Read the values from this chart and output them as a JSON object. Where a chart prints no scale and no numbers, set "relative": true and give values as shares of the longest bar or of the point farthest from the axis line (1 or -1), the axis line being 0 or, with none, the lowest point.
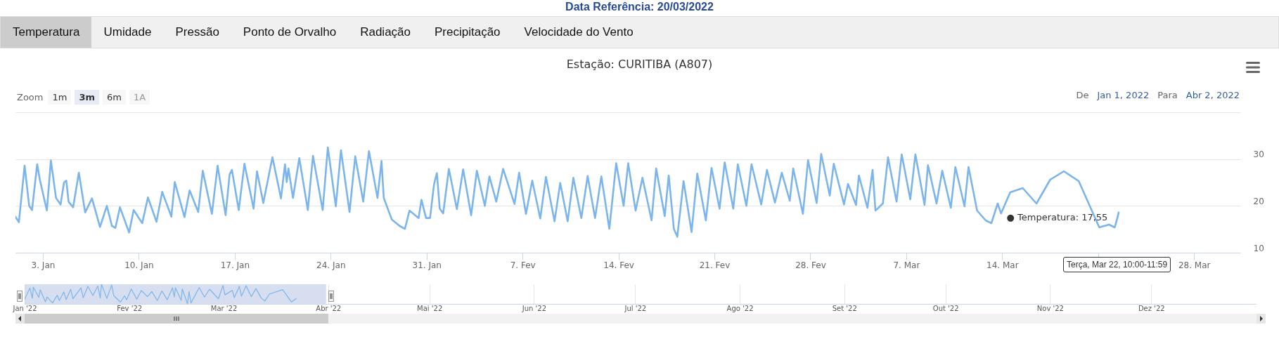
{
  "chart_data": [
    {
      "type": "other",
      "title": "Data Referência: 20/03/2022",
      "annotations": [
        "Temperatura",
        "Umidade",
        "Pressão",
        "Ponto de Orvalho",
        "Radiação",
        "Precipitação",
        "Velocidade do Vento"
      ]
    },
    {
      "type": "line",
      "title": "Estação: CURITIBA (A807)",
      "color": "#7cb5ec",
      "x": [
        "2022-01-01T00:00",
        "2022-01-01T06:00",
        "2022-01-01T16:00",
        "2022-01-02T00:00",
        "2022-01-02T05:00",
        "2022-01-02T14:00",
        "2022-01-02T19:00",
        "2022-01-03T07:00",
        "2022-01-03T14:00",
        "2022-01-03T23:00",
        "2022-01-04T07:00",
        "2022-01-04T13:00",
        "2022-01-04T17:00",
        "2022-01-04T21:00",
        "2022-01-05T05:00",
        "2022-01-05T15:00",
        "2022-01-06T02:00",
        "2022-01-06T14:00",
        "2022-01-07T04:00",
        "2022-01-07T16:00",
        "2022-01-08T01:00",
        "2022-01-08T07:00",
        "2022-01-08T15:00",
        "2022-01-09T07:00",
        "2022-01-09T15:00",
        "2022-01-10T06:00",
        "2022-01-10T16:00",
        "2022-01-11T07:00",
        "2022-01-11T17:00",
        "2022-01-12T09:00",
        "2022-01-12T15:00",
        "2022-01-13T08:00",
        "2022-01-13T17:00",
        "2022-01-14T08:00",
        "2022-01-14T16:00",
        "2022-01-15T08:00",
        "2022-01-15T18:00",
        "2022-01-16T08:00",
        "2022-01-16T15:00",
        "2022-01-16T19:00",
        "2022-01-17T07:00",
        "2022-01-17T17:00",
        "2022-01-18T09:00",
        "2022-01-18T15:00",
        "2022-01-19T02:00",
        "2022-01-19T18:00",
        "2022-01-20T09:00",
        "2022-01-20T16:00",
        "2022-01-20T19:00",
        "2022-01-20T22:00",
        "2022-01-21T06:00",
        "2022-01-21T17:00",
        "2022-01-22T08:00",
        "2022-01-22T17:00",
        "2022-01-23T10:00",
        "2022-01-23T19:00",
        "2022-01-24T09:00",
        "2022-01-24T18:00",
        "2022-01-25T09:00",
        "2022-01-25T19:00",
        "2022-01-26T09:00",
        "2022-01-26T19:00",
        "2022-01-27T10:00",
        "2022-01-27T17:00",
        "2022-01-27T21:00",
        "2022-01-28T11:00",
        "2022-01-29T01:00",
        "2022-01-29T10:00",
        "2022-01-29T18:00",
        "2022-01-30T10:00",
        "2022-01-30T15:00",
        "2022-01-30T23:00",
        "2022-01-31T06:00",
        "2022-01-31T13:00",
        "2022-01-31T18:00",
        "2022-01-31T23:00",
        "2022-02-01T05:00",
        "2022-02-01T15:00",
        "2022-02-02T05:00",
        "2022-02-02T16:00",
        "2022-02-03T06:00",
        "2022-02-03T16:00",
        "2022-02-04T06:00",
        "2022-02-04T14:00",
        "2022-02-05T02:00",
        "2022-02-05T14:00",
        "2022-02-06T10:00",
        "2022-02-06T18:00",
        "2022-02-07T06:00",
        "2022-02-07T17:00",
        "2022-02-08T07:00",
        "2022-02-08T17:00",
        "2022-02-09T08:00",
        "2022-02-09T18:00",
        "2022-02-10T07:00",
        "2022-02-10T17:00",
        "2022-02-11T07:00",
        "2022-02-11T18:00",
        "2022-02-12T07:00",
        "2022-02-12T18:00",
        "2022-02-13T08:00",
        "2022-02-13T20:00",
        "2022-02-14T09:00",
        "2022-02-14T17:00",
        "2022-02-15T06:00",
        "2022-02-15T18:00",
        "2022-02-16T10:00",
        "2022-02-16T18:00",
        "2022-02-17T09:00",
        "2022-02-17T16:00",
        "2022-02-18T01:00",
        "2022-02-18T07:00",
        "2022-02-18T18:00",
        "2022-02-19T08:00",
        "2022-02-19T18:00",
        "2022-02-20T09:00",
        "2022-02-20T19:00",
        "2022-02-21T09:00",
        "2022-02-21T18:00",
        "2022-02-22T09:00",
        "2022-02-22T17:00",
        "2022-02-23T08:00",
        "2022-02-23T17:00",
        "2022-02-24T10:00",
        "2022-02-24T20:00",
        "2022-02-25T10:00",
        "2022-02-25T22:00",
        "2022-02-26T12:00",
        "2022-02-26T18:00",
        "2022-02-27T11:00",
        "2022-02-27T20:00",
        "2022-02-28T11:00",
        "2022-02-28T19:00",
        "2022-03-01T10:00",
        "2022-03-01T17:00",
        "2022-03-02T11:00",
        "2022-03-02T18:00",
        "2022-03-03T08:00",
        "2022-03-03T13:00",
        "2022-03-04T04:00",
        "2022-03-04T13:00",
        "2022-03-04T18:00",
        "2022-03-05T07:00",
        "2022-03-05T16:00",
        "2022-03-06T07:00",
        "2022-03-06T16:00",
        "2022-03-07T07:00",
        "2022-03-07T16:00",
        "2022-03-08T08:00",
        "2022-03-08T14:00",
        "2022-03-09T05:00",
        "2022-03-09T15:00",
        "2022-03-10T06:00",
        "2022-03-10T14:00",
        "2022-03-11T06:00",
        "2022-03-11T13:00",
        "2022-03-12T04:00",
        "2022-03-12T19:00",
        "2022-03-13T05:00",
        "2022-03-13T16:00",
        "2022-03-13T22:00",
        "2022-03-14T14:00",
        "2022-03-15T12:00",
        "2022-03-16T12:00",
        "2022-03-17T12:00",
        "2022-03-18T12:00",
        "2022-03-19T14:00",
        "2022-03-21T02:00",
        "2022-03-21T19:00",
        "2022-03-22T05:00",
        "2022-03-22T10:00",
        "2022-03-22T12:00"
      ],
      "values": [
        17.7,
        16.5,
        28.6,
        20.0,
        19.1,
        28.9,
        25.4,
        19.0,
        29.7,
        21.7,
        20.3,
        25.0,
        25.4,
        20.9,
        19.7,
        27.1,
        18.6,
        21.6,
        15.5,
        20.0,
        15.7,
        15.3,
        19.7,
        14.3,
        19.1,
        16.3,
        21.8,
        16.6,
        23.0,
        17.7,
        25.1,
        17.6,
        23.3,
        18.7,
        27.5,
        18.3,
        28.6,
        18.0,
        26.7,
        27.7,
        19.1,
        29.0,
        19.4,
        27.4,
        20.6,
        30.4,
        21.6,
        28.9,
        25.1,
        28.0,
        21.7,
        30.2,
        19.1,
        30.7,
        19.1,
        32.5,
        19.9,
        31.9,
        18.7,
        30.6,
        20.9,
        31.7,
        21.7,
        29.6,
        21.7,
        17.1,
        15.7,
        15.1,
        19.0,
        17.4,
        21.3,
        17.4,
        17.4,
        24.6,
        27.0,
        19.4,
        18.4,
        27.9,
        19.3,
        27.8,
        18.0,
        27.5,
        20.0,
        26.3,
        20.9,
        27.9,
        20.4,
        27.1,
        18.3,
        25.4,
        17.3,
        26.2,
        16.7,
        24.9,
        16.7,
        26.0,
        17.4,
        26.4,
        17.4,
        26.3,
        15.1,
        29.1,
        20.0,
        29.1,
        19.0,
        26.0,
        16.9,
        28.0,
        17.8,
        26.5,
        15.1,
        13.4,
        25.3,
        14.4,
        26.9,
        16.9,
        28.1,
        19.4,
        29.3,
        19.4,
        28.9,
        20.0,
        28.9,
        20.3,
        27.7,
        20.7,
        27.1,
        21.1,
        28.0,
        18.3,
        29.8,
        20.6,
        31.1,
        22.2,
        29.0,
        20.3,
        24.7,
        20.2,
        26.5,
        19.6,
        27.7,
        19.0,
        20.5,
        30.4,
        20.9,
        31.0,
        21.4,
        31.0,
        20.2,
        28.7,
        20.5,
        27.5,
        19.6,
        28.3,
        19.9,
        28.3,
        19.0,
        16.9,
        16.3,
        20.5,
        18.4,
        22.9,
        23.8,
        20.5,
        25.6,
        27.4,
        25.3,
        15.4,
        16.0,
        15.4,
        17.55,
        18.6
      ],
      "xlim": [
        "2022-01-01T00:00",
        "2022-03-31T09:00"
      ],
      "xticks": [
        {
          "value": "2022-01-03",
          "label": "3. Jan"
        },
        {
          "value": "2022-01-10",
          "label": "10. Jan"
        },
        {
          "value": "2022-01-17",
          "label": "17. Jan"
        },
        {
          "value": "2022-01-24",
          "label": "24. Jan"
        },
        {
          "value": "2022-01-31",
          "label": "31. Jan"
        },
        {
          "value": "2022-02-07",
          "label": "7. Fev"
        },
        {
          "value": "2022-02-14",
          "label": "14. Fev"
        },
        {
          "value": "2022-02-21",
          "label": "21. Fev"
        },
        {
          "value": "2022-02-28",
          "label": "28. Fev"
        },
        {
          "value": "2022-03-07",
          "label": "7. Mar"
        },
        {
          "value": "2022-03-14",
          "label": "14. Mar"
        },
        {
          "value": "2022-03-21",
          "label": null
        },
        {
          "value": "2022-03-28",
          "label": "28. Mar"
        }
      ],
      "ylim": [
        10,
        40
      ],
      "yticks": [
        10,
        20,
        30,
        {
          "value": 40,
          "label": null
        }
      ],
      "grid": "y",
      "annotations": [
        "Zoom",
        "1m",
        "3m",
        "6m",
        "1A",
        "De",
        "Jan 1, 2022",
        "Para",
        "Abr 2, 2022",
        {
          "text": "● Temperatura: 17,55",
          "x": "2022-03-22T10:00",
          "y": 17.55
        },
        "Terça, Mar 22, 10:00-11:59"
      ]
    },
    {
      "type": "line",
      "color": "#7cb5ec",
      "x": [
        "2022-01-01T00:00",
        "2022-01-02T14:00",
        "2022-01-03T07:00",
        "2022-01-03T14:00",
        "2022-01-05T05:00",
        "2022-01-05T15:00",
        "2022-01-07T04:00",
        "2022-01-07T16:00",
        "2022-01-09T07:00",
        "2022-01-10T16:00",
        "2022-01-11T07:00",
        "2022-01-12T15:00",
        "2022-01-13T08:00",
        "2022-01-14T16:00",
        "2022-01-15T08:00",
        "2022-01-17T17:00",
        "2022-01-18T09:00",
        "2022-01-19T18:00",
        "2022-01-21T06:00",
        "2022-01-22T17:00",
        "2022-01-23T10:00",
        "2022-01-23T19:00",
        "2022-01-25T09:00",
        "2022-01-26T19:00",
        "2022-01-27T10:00",
        "2022-01-29T10:00",
        "2022-01-30T15:00",
        "2022-01-31T06:00",
        "2022-02-01T15:00",
        "2022-02-03T06:00",
        "2022-02-04T14:00",
        "2022-02-06T10:00",
        "2022-02-07T17:00",
        "2022-02-09T08:00",
        "2022-02-10T17:00",
        "2022-02-12T07:00",
        "2022-02-13T20:00",
        "2022-02-14T09:00",
        "2022-02-14T17:00",
        "2022-02-16T10:00",
        "2022-02-16T18:00",
        "2022-02-18T07:00",
        "2022-02-18T18:00",
        "2022-02-19T08:00",
        "2022-02-21T18:00",
        "2022-02-23T08:00",
        "2022-02-24T20:00",
        "2022-02-27T11:00",
        "2022-02-28T19:00",
        "2022-03-01T10:00",
        "2022-03-03T13:00",
        "2022-03-04T04:00",
        "2022-03-05T16:00",
        "2022-03-06T07:00",
        "2022-03-07T16:00",
        "2022-03-09T05:00",
        "2022-03-10T14:00",
        "2022-03-12T04:00",
        "2022-03-13T05:00",
        "2022-03-14T14:00",
        "2022-03-18T12:00",
        "2022-03-21T02:00",
        "2022-03-22T12:00"
      ],
      "values": [
        0.23,
        0.81,
        0.29,
        0.85,
        0.33,
        0.72,
        0.11,
        0.35,
        0.05,
        0.44,
        0.17,
        0.61,
        0.22,
        0.74,
        0.26,
        0.82,
        0.31,
        0.89,
        0.43,
        0.91,
        0.3,
        1,
        0.28,
        0.96,
        0.43,
        0.09,
        0.41,
        0.21,
        0.76,
        0.24,
        0.68,
        0.37,
        0.63,
        0.17,
        0.66,
        0.21,
        0.82,
        0.35,
        0.82,
        0.18,
        0.76,
        0,
        0.62,
        0.05,
        0.83,
        0.35,
        0.75,
        0.26,
        0.93,
        0.46,
        0.69,
        0.32,
        0.89,
        0.39,
        0.92,
        0.37,
        0.78,
        0.29,
        0.15,
        0.5,
        0.73,
        0.1,
        0.27
      ],
      "relative": true,
      "xlim": [
        "2022-01-01",
        "2023-01-01"
      ],
      "xticks": [
        {
          "value": "2022-01-01",
          "label": "Jan '22"
        },
        {
          "value": "2022-02-01",
          "label": "Fev '22"
        },
        {
          "value": "2022-03-01",
          "label": "Mar '22"
        },
        {
          "value": "2022-04-01",
          "label": "Abr '22"
        },
        {
          "value": "2022-05-01",
          "label": "Mai '22"
        },
        {
          "value": "2022-06-01",
          "label": "Jun '22"
        },
        {
          "value": "2022-07-01",
          "label": "Jul '22"
        },
        {
          "value": "2022-08-01",
          "label": "Ago '22"
        },
        {
          "value": "2022-09-01",
          "label": "Set '22"
        },
        {
          "value": "2022-10-01",
          "label": "Out '22"
        },
        {
          "value": "2022-11-01",
          "label": "Nov '22"
        },
        {
          "value": "2022-12-01",
          "label": "Dez '22"
        }
      ],
      "grid": "x",
      "bands": [
        {
          "axis": "x",
          "from": "2022-01-01",
          "to": "2022-03-31T09:00",
          "color": "#ccd6eb"
        }
      ]
    }
  ]
}
